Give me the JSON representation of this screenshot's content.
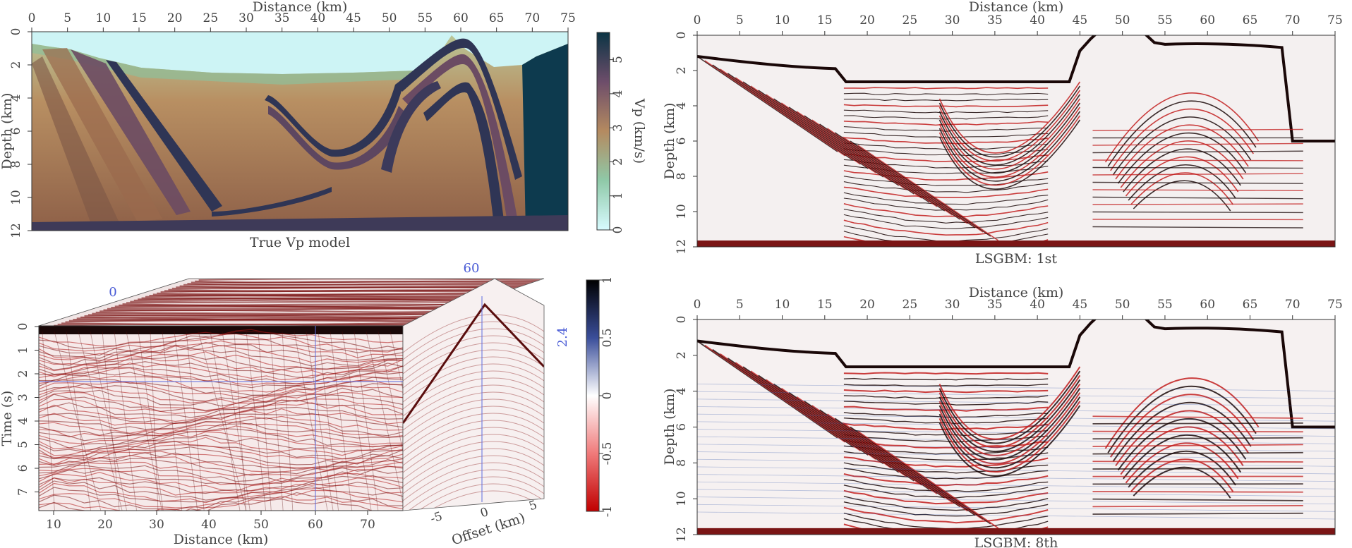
{
  "panels": {
    "vp_model": {
      "caption": "True Vp model",
      "x_axis_label": "Distance (km)",
      "y_axis_label": "Depth (km)",
      "x_ticks": [
        "0",
        "5",
        "10",
        "15",
        "20",
        "25",
        "30",
        "35",
        "40",
        "45",
        "50",
        "55",
        "60",
        "65",
        "70",
        "75"
      ],
      "y_ticks": [
        "0",
        "2",
        "4",
        "6",
        "8",
        "10",
        "12"
      ],
      "colorbar_label": "Vp (km/s)",
      "colorbar_ticks": [
        "0",
        "1",
        "2",
        "3",
        "4",
        "5"
      ]
    },
    "data_cube": {
      "x_axis_label": "Distance (km)",
      "y_axis_label": "Time (s)",
      "offset_label": "Offset (km)",
      "x_ticks": [
        "10",
        "20",
        "30",
        "40",
        "50",
        "60",
        "70"
      ],
      "y_ticks": [
        "0",
        "1",
        "2",
        "3",
        "4",
        "5",
        "6",
        "7"
      ],
      "offset_ticks": [
        "-5",
        "0",
        "5"
      ],
      "colorbar_ticks": [
        "1",
        "0.5",
        "0",
        "-0.5",
        "-1"
      ],
      "slice_tags": {
        "top_left": "0",
        "top_right": "60",
        "time": "2.4"
      }
    },
    "lsgbm_1st": {
      "caption": "LSGBM: 1st",
      "x_axis_label": "Distance (km)",
      "y_axis_label": "Depth (km)",
      "x_ticks": [
        "0",
        "5",
        "10",
        "15",
        "20",
        "25",
        "30",
        "35",
        "40",
        "45",
        "50",
        "55",
        "60",
        "65",
        "70",
        "75"
      ],
      "y_ticks": [
        "0",
        "2",
        "4",
        "6",
        "8",
        "10",
        "12"
      ]
    },
    "lsgbm_8th": {
      "caption": "LSGBM: 8th",
      "x_axis_label": "Distance (km)",
      "y_axis_label": "Depth (km)",
      "x_ticks": [
        "0",
        "5",
        "10",
        "15",
        "20",
        "25",
        "30",
        "35",
        "40",
        "45",
        "50",
        "55",
        "60",
        "65",
        "70",
        "75"
      ],
      "y_ticks": [
        "0",
        "2",
        "4",
        "6",
        "8",
        "10",
        "12"
      ]
    }
  },
  "colors": {
    "water": "#cdf4f5",
    "sediment": "#a97a55",
    "high_velocity": "#3a3f66",
    "basement": "#0d3a4e",
    "reflector_dark": "#1a0a0a",
    "reflector_red": "#c21d1d",
    "reflector_blue": "#3b5fb0"
  }
}
